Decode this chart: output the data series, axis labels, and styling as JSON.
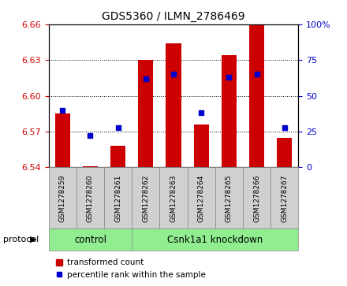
{
  "title": "GDS5360 / ILMN_2786469",
  "samples": [
    "GSM1278259",
    "GSM1278260",
    "GSM1278261",
    "GSM1278262",
    "GSM1278263",
    "GSM1278264",
    "GSM1278265",
    "GSM1278266",
    "GSM1278267"
  ],
  "transformed_count": [
    6.585,
    6.541,
    6.558,
    6.63,
    6.644,
    6.576,
    6.634,
    6.659,
    6.565
  ],
  "percentile_rank": [
    40,
    22,
    28,
    62,
    65,
    38,
    63,
    65,
    28
  ],
  "ylim_left": [
    6.54,
    6.66
  ],
  "ylim_right": [
    0,
    100
  ],
  "yticks_left": [
    6.54,
    6.57,
    6.6,
    6.63,
    6.66
  ],
  "yticks_right": [
    0,
    25,
    50,
    75,
    100
  ],
  "ytick_labels_right": [
    "0",
    "25",
    "50",
    "75",
    "100%"
  ],
  "protocol_groups": [
    {
      "label": "control",
      "start": 0,
      "end": 3
    },
    {
      "label": "Csnk1a1 knockdown",
      "start": 3,
      "end": 9
    }
  ],
  "group_color": "#90ee90",
  "sample_box_color": "#d0d0d0",
  "bar_color": "#cc0000",
  "marker_color": "#0000cc",
  "bar_bottom": 6.54,
  "bar_width": 0.55,
  "marker_size": 5,
  "left_tick_color": "#cc0000",
  "right_tick_color": "#0000cc",
  "legend_bar_label": "transformed count",
  "legend_marker_label": "percentile rank within the sample",
  "protocol_label": "protocol",
  "figsize": [
    4.4,
    3.63
  ],
  "dpi": 100
}
